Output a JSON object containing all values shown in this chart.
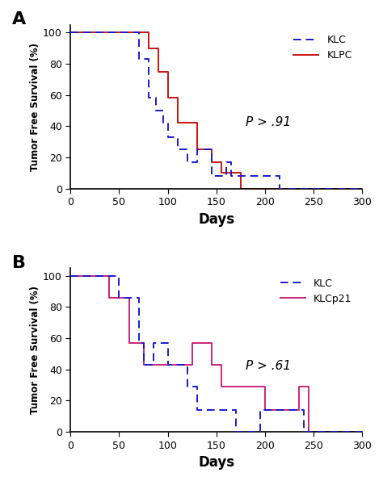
{
  "panel_A": {
    "label": "A",
    "KLC": {
      "x": [
        0,
        70,
        70,
        80,
        80,
        88,
        88,
        95,
        95,
        100,
        100,
        110,
        110,
        120,
        120,
        130,
        130,
        145,
        145,
        160,
        160,
        165,
        165,
        215,
        215,
        220,
        220,
        300
      ],
      "y": [
        100,
        100,
        83,
        83,
        58,
        58,
        50,
        50,
        42,
        42,
        33,
        33,
        25,
        25,
        17,
        17,
        25,
        25,
        8,
        8,
        17,
        17,
        8,
        8,
        0,
        0,
        0,
        0
      ]
    },
    "KLPC": {
      "x": [
        0,
        80,
        80,
        90,
        90,
        100,
        100,
        110,
        110,
        130,
        130,
        145,
        145,
        155,
        155,
        175,
        175,
        185,
        185,
        300
      ],
      "y": [
        100,
        100,
        90,
        90,
        75,
        75,
        58,
        58,
        42,
        42,
        25,
        25,
        17,
        17,
        10,
        10,
        0,
        0,
        0,
        0
      ]
    },
    "pvalue": "P > .91",
    "ylabel": "Tumor Free Survival (%)",
    "xlabel": "Days",
    "xlim": [
      0,
      300
    ],
    "ylim": [
      0,
      105
    ],
    "xticks": [
      0,
      50,
      100,
      150,
      200,
      250,
      300
    ],
    "yticks": [
      0,
      20,
      40,
      60,
      80,
      100
    ]
  },
  "panel_B": {
    "label": "B",
    "KLC": {
      "x": [
        0,
        50,
        50,
        70,
        70,
        75,
        75,
        85,
        85,
        100,
        100,
        120,
        120,
        130,
        130,
        170,
        170,
        195,
        195,
        240,
        240,
        300
      ],
      "y": [
        100,
        100,
        86,
        86,
        57,
        57,
        43,
        43,
        57,
        57,
        43,
        43,
        29,
        29,
        14,
        14,
        0,
        0,
        14,
        14,
        0,
        0
      ]
    },
    "KLCp21": {
      "x": [
        0,
        40,
        40,
        60,
        60,
        75,
        75,
        125,
        125,
        145,
        145,
        155,
        155,
        200,
        200,
        235,
        235,
        245,
        245,
        300
      ],
      "y": [
        100,
        100,
        86,
        86,
        57,
        57,
        43,
        43,
        57,
        57,
        43,
        43,
        29,
        29,
        14,
        14,
        29,
        29,
        0,
        0
      ]
    },
    "pvalue": "P > .61",
    "ylabel": "Tumor Free Survival (%)",
    "xlabel": "Days",
    "xlim": [
      0,
      300
    ],
    "ylim": [
      0,
      105
    ],
    "xticks": [
      0,
      50,
      100,
      150,
      200,
      250,
      300
    ],
    "yticks": [
      0,
      20,
      40,
      60,
      80,
      100
    ]
  },
  "KLC_color": "#1a1acc",
  "KLPC_color": "#cc1111",
  "KLCp21_color": "#cc2277",
  "background": "#ffffff"
}
